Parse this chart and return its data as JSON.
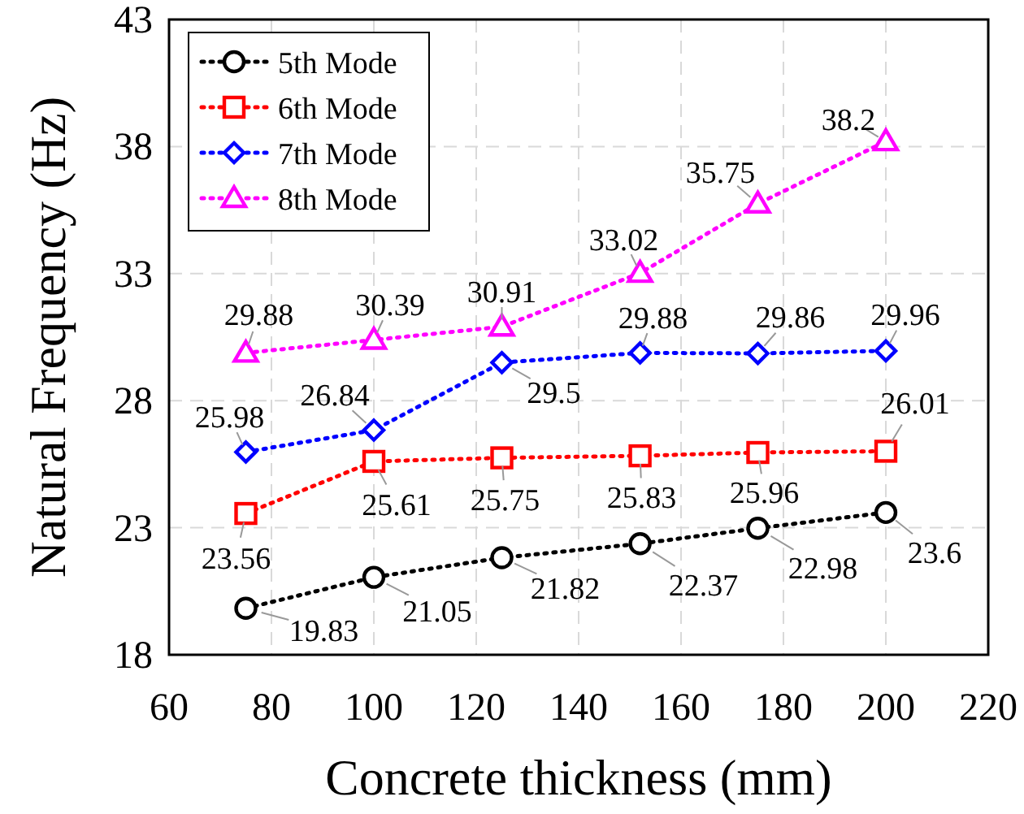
{
  "chart_data": {
    "type": "line",
    "xlabel": "Concrete thickness (mm)",
    "ylabel": "Natural Frequency (Hz)",
    "x": [
      75,
      100,
      125,
      152,
      175,
      200
    ],
    "series": [
      {
        "name": "5th Mode",
        "color": "#000000",
        "marker": "circle",
        "values": [
          19.83,
          21.05,
          21.82,
          22.37,
          22.98,
          23.6
        ]
      },
      {
        "name": "6th Mode",
        "color": "#ff0000",
        "marker": "square",
        "values": [
          23.56,
          25.61,
          25.75,
          25.83,
          25.96,
          26.01
        ]
      },
      {
        "name": "7th Mode",
        "color": "#0000ff",
        "marker": "diamond",
        "values": [
          25.98,
          26.84,
          29.5,
          29.88,
          29.86,
          29.96
        ]
      },
      {
        "name": "8th Mode",
        "color": "#ff00ff",
        "marker": "triangle",
        "values": [
          29.88,
          30.39,
          30.91,
          33.02,
          35.75,
          38.2
        ]
      }
    ],
    "xlim": [
      60,
      220
    ],
    "xticks": [
      60,
      80,
      100,
      120,
      140,
      160,
      180,
      200,
      220
    ],
    "ylim": [
      18,
      43
    ],
    "yticks": [
      18,
      23,
      28,
      33,
      38,
      43
    ],
    "grid": true,
    "legend": "top left",
    "line_style": "dotted",
    "data_labels": true
  }
}
